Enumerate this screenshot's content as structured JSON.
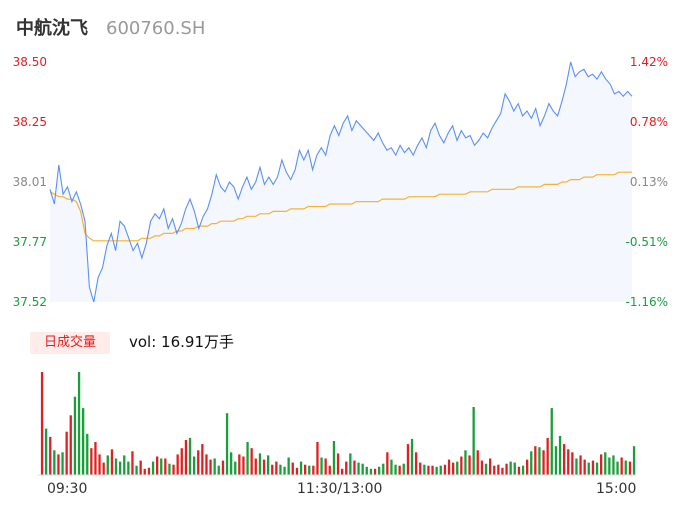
{
  "header": {
    "name": "中航沈飞",
    "code": "600760.SH"
  },
  "volume_panel": {
    "tab_label": "日成交量",
    "volume_text": "vol: 16.91万手"
  },
  "colors": {
    "price_line": "#5b8ff9",
    "avg_line": "#f5b335",
    "up": "#e02020",
    "down": "#1a9e3a",
    "area_fill": "#f4f7fd"
  },
  "chart_data": [
    {
      "type": "line",
      "title": "",
      "xlabel": "",
      "ylabel": "",
      "x_ticks": [
        "09:30",
        "11:30/13:00",
        "15:00"
      ],
      "y_ticks_left": [
        "38.50",
        "38.25",
        "38.01",
        "37.77",
        "37.52"
      ],
      "y_ticks_right": [
        "1.42%",
        "0.78%",
        "0.13%",
        "-0.51%",
        "-1.16%"
      ],
      "ylim": [
        37.52,
        38.5
      ],
      "series": [
        {
          "values": [
            37.98,
            37.92,
            38.08,
            37.96,
            37.99,
            37.93,
            37.97,
            37.92,
            37.85,
            37.58,
            37.52,
            37.62,
            37.66,
            37.75,
            37.8,
            37.73,
            37.85,
            37.83,
            37.78,
            37.73,
            37.76,
            37.7,
            37.76,
            37.85,
            37.88,
            37.86,
            37.9,
            37.82,
            37.86,
            37.8,
            37.84,
            37.9,
            37.94,
            37.89,
            37.82,
            37.87,
            37.9,
            37.96,
            38.04,
            37.99,
            37.97,
            38.01,
            37.99,
            37.94,
            37.99,
            38.03,
            37.98,
            38.01,
            38.07,
            38.0,
            38.03,
            38.0,
            38.03,
            38.1,
            38.05,
            38.02,
            38.06,
            38.14,
            38.1,
            38.14,
            38.06,
            38.12,
            38.15,
            38.12,
            38.2,
            38.24,
            38.2,
            38.25,
            38.28,
            38.22,
            38.26,
            38.24,
            38.22,
            38.2,
            38.18,
            38.21,
            38.17,
            38.14,
            38.15,
            38.12,
            38.16,
            38.13,
            38.15,
            38.12,
            38.16,
            38.19,
            38.15,
            38.22,
            38.25,
            38.2,
            38.17,
            38.21,
            38.24,
            38.18,
            38.22,
            38.19,
            38.2,
            38.16,
            38.18,
            38.21,
            38.19,
            38.23,
            38.26,
            38.29,
            38.37,
            38.34,
            38.3,
            38.33,
            38.28,
            38.3,
            38.27,
            38.31,
            38.24,
            38.28,
            38.33,
            38.3,
            38.28,
            38.34,
            38.41,
            38.5,
            38.44,
            38.46,
            38.47,
            38.44,
            38.45,
            38.43,
            38.46,
            38.43,
            38.41,
            38.37,
            38.38,
            38.36,
            38.38,
            38.36
          ]
        },
        {
          "values": [
            37.97,
            37.96,
            37.95,
            37.95,
            37.94,
            37.94,
            37.93,
            37.89,
            37.8,
            37.78,
            37.77,
            37.77,
            37.77,
            37.77,
            37.77,
            37.77,
            37.77,
            37.77,
            37.77,
            37.77,
            37.77,
            37.78,
            37.78,
            37.78,
            37.79,
            37.79,
            37.8,
            37.8,
            37.8,
            37.81,
            37.81,
            37.82,
            37.82,
            37.82,
            37.83,
            37.83,
            37.83,
            37.84,
            37.84,
            37.85,
            37.85,
            37.85,
            37.85,
            37.86,
            37.86,
            37.87,
            37.87,
            37.87,
            37.88,
            37.88,
            37.88,
            37.89,
            37.89,
            37.89,
            37.89,
            37.9,
            37.9,
            37.9,
            37.9,
            37.91,
            37.91,
            37.91,
            37.91,
            37.91,
            37.92,
            37.92,
            37.92,
            37.92,
            37.92,
            37.92,
            37.93,
            37.93,
            37.93,
            37.93,
            37.93,
            37.93,
            37.94,
            37.94,
            37.94,
            37.94,
            37.94,
            37.94,
            37.95,
            37.95,
            37.95,
            37.95,
            37.95,
            37.95,
            37.95,
            37.96,
            37.96,
            37.96,
            37.96,
            37.96,
            37.96,
            37.96,
            37.97,
            37.97,
            37.97,
            37.97,
            37.97,
            37.98,
            37.98,
            37.98,
            37.98,
            37.98,
            37.98,
            37.99,
            37.99,
            37.99,
            37.99,
            37.99,
            37.99,
            38.0,
            38.0,
            38.0,
            38.0,
            38.01,
            38.01,
            38.02,
            38.02,
            38.02,
            38.03,
            38.03,
            38.03,
            38.04,
            38.04,
            38.04,
            38.04,
            38.04,
            38.05,
            38.05,
            38.05,
            38.05
          ]
        }
      ]
    },
    {
      "type": "bar",
      "title": "",
      "ylim": [
        0,
        100
      ],
      "values": [
        100,
        45,
        37,
        24,
        20,
        22,
        42,
        58,
        76,
        100,
        65,
        40,
        26,
        32,
        20,
        12,
        19,
        25,
        16,
        13,
        19,
        13,
        23,
        9,
        14,
        6,
        7,
        13,
        18,
        16,
        16,
        11,
        10,
        20,
        26,
        34,
        36,
        18,
        24,
        30,
        20,
        15,
        16,
        9,
        14,
        60,
        22,
        13,
        20,
        18,
        32,
        26,
        16,
        21,
        15,
        19,
        10,
        13,
        10,
        8,
        17,
        12,
        7,
        13,
        10,
        9,
        9,
        32,
        17,
        16,
        9,
        33,
        21,
        6,
        13,
        21,
        14,
        12,
        11,
        8,
        6,
        6,
        8,
        11,
        22,
        15,
        10,
        9,
        11,
        30,
        35,
        22,
        12,
        10,
        9,
        9,
        8,
        9,
        10,
        15,
        12,
        13,
        18,
        24,
        19,
        66,
        24,
        14,
        11,
        16,
        9,
        10,
        7,
        11,
        13,
        12,
        8,
        9,
        15,
        23,
        28,
        27,
        24,
        36,
        65,
        28,
        38,
        30,
        25,
        22,
        16,
        19,
        15,
        12,
        14,
        12,
        20,
        22,
        17,
        19,
        13,
        17,
        14,
        13,
        28
      ]
    }
  ]
}
